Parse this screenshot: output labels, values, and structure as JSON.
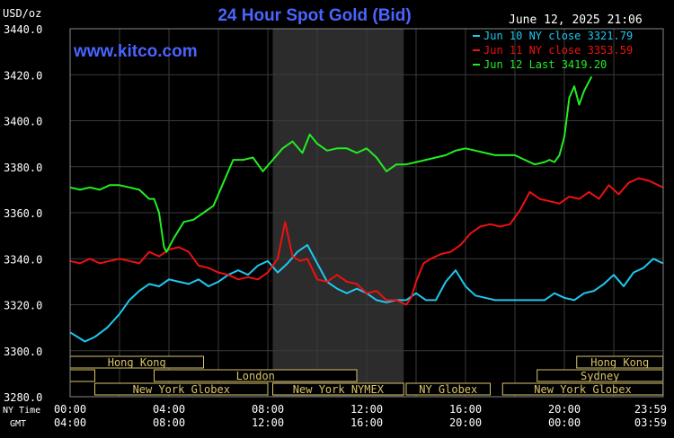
{
  "header": {
    "unit": "USD/oz",
    "title": "24 Hour Spot Gold (Bid)",
    "datetime": "June 12, 2025 21:06",
    "watermark": "www.kitco.com"
  },
  "axes": {
    "ny_label": "NY Time",
    "gmt_label": "GMT",
    "ny_ticks": [
      "00:00",
      "04:00",
      "08:00",
      "12:00",
      "16:00",
      "20:00",
      "23:59"
    ],
    "gmt_ticks": [
      "04:00",
      "08:00",
      "12:00",
      "16:00",
      "20:00",
      "00:00",
      "03:59"
    ]
  },
  "sessions": [
    {
      "label": "Hong Kong",
      "row": 0,
      "start": 0,
      "end": 5.4
    },
    {
      "label": "Hong Kong",
      "row": 0,
      "start": 20.5,
      "end": 23.99
    },
    {
      "label": "",
      "row": 1,
      "start": 0,
      "end": 1
    },
    {
      "label": "London",
      "row": 1,
      "start": 3.4,
      "end": 11.6
    },
    {
      "label": "Sydney",
      "row": 1,
      "start": 18.9,
      "end": 23.99
    },
    {
      "label": "New York Globex",
      "row": 2,
      "start": 1,
      "end": 8
    },
    {
      "label": "New York NYMEX",
      "row": 2,
      "start": 8.2,
      "end": 13.5
    },
    {
      "label": "NY Globex",
      "row": 2,
      "start": 13.6,
      "end": 17
    },
    {
      "label": "New York Globex",
      "row": 2,
      "start": 17.5,
      "end": 23.99
    }
  ],
  "colors": {
    "jun10": "#1ec8f0",
    "jun11": "#ee1111",
    "jun12": "#22ee22",
    "title": "#4a64ff",
    "watermark": "#4a64ff",
    "grid": "#3a3a3a",
    "nymex_shade": "#2c2c2c",
    "session_box": "#d9c36a"
  },
  "chart_data": {
    "type": "line",
    "title": "24 Hour Spot Gold (Bid)",
    "xlabel": "",
    "ylabel": "USD/oz",
    "x_unit": "hours (NY time)",
    "xlim": [
      0,
      24
    ],
    "ylim": [
      3280,
      3440
    ],
    "yticks": [
      3280,
      3300,
      3320,
      3340,
      3360,
      3380,
      3400,
      3420,
      3440
    ],
    "ytick_labels": [
      "3280.0",
      "3300.0",
      "3320.0",
      "3340.0",
      "3360.0",
      "3380.0",
      "3400.0",
      "3420.0",
      "3440.0"
    ],
    "shaded_x_range": [
      8.2,
      13.5
    ],
    "legend_position": "top-right",
    "series": [
      {
        "name": "Jun 10 NY close 3321.79",
        "color": "#1ec8f0",
        "x": [
          0,
          0.3,
          0.6,
          1,
          1.5,
          2,
          2.4,
          2.8,
          3.2,
          3.6,
          4,
          4.4,
          4.8,
          5.2,
          5.6,
          6,
          6.4,
          6.8,
          7.2,
          7.6,
          8,
          8.4,
          8.8,
          9.2,
          9.6,
          10,
          10.4,
          10.8,
          11.2,
          11.6,
          12,
          12.4,
          12.8,
          13.2,
          13.6,
          14,
          14.4,
          14.8,
          15.2,
          15.6,
          16,
          16.4,
          16.8,
          17.2,
          17.6,
          18,
          18.4,
          18.8,
          19.2,
          19.6,
          20,
          20.4,
          20.8,
          21.2,
          21.6,
          22,
          22.4,
          22.8,
          23.2,
          23.6,
          23.99
        ],
        "y": [
          3308,
          3306,
          3304,
          3306,
          3310,
          3316,
          3322,
          3326,
          3329,
          3328,
          3331,
          3330,
          3329,
          3331,
          3328,
          3330,
          3333,
          3335,
          3333,
          3337,
          3339,
          3334,
          3338,
          3343,
          3346,
          3338,
          3330,
          3327,
          3325,
          3327,
          3325,
          3322,
          3321,
          3322,
          3322,
          3325,
          3322,
          3322,
          3330,
          3335,
          3328,
          3324,
          3323,
          3322,
          3322,
          3322,
          3322,
          3322,
          3322,
          3325,
          3323,
          3322,
          3325,
          3326,
          3329,
          3333,
          3328,
          3334,
          3336,
          3340,
          3338
        ]
      },
      {
        "name": "Jun 11 NY close 3353.59",
        "color": "#ee1111",
        "x": [
          0,
          0.4,
          0.8,
          1.2,
          1.6,
          2,
          2.4,
          2.8,
          3.2,
          3.6,
          4,
          4.4,
          4.8,
          5.2,
          5.6,
          6,
          6.4,
          6.8,
          7.2,
          7.6,
          8,
          8.4,
          8.7,
          9,
          9.3,
          9.6,
          10,
          10.4,
          10.8,
          11.2,
          11.6,
          12,
          12.4,
          12.8,
          13.2,
          13.6,
          13.8,
          14,
          14.3,
          14.6,
          15,
          15.4,
          15.8,
          16.2,
          16.6,
          17,
          17.4,
          17.8,
          18.2,
          18.6,
          19,
          19.4,
          19.8,
          20.2,
          20.6,
          21,
          21.4,
          21.8,
          22.2,
          22.6,
          23,
          23.4,
          23.99
        ],
        "y": [
          3339,
          3338,
          3340,
          3338,
          3339,
          3340,
          3339,
          3338,
          3343,
          3341,
          3344,
          3345,
          3343,
          3337,
          3336,
          3334,
          3333,
          3331,
          3332,
          3331,
          3334,
          3340,
          3356,
          3341,
          3339,
          3340,
          3331,
          3330,
          3333,
          3330,
          3329,
          3325,
          3326,
          3322,
          3322,
          3320,
          3323,
          3330,
          3338,
          3340,
          3342,
          3343,
          3346,
          3351,
          3354,
          3355,
          3354,
          3355,
          3361,
          3369,
          3366,
          3365,
          3364,
          3367,
          3366,
          3369,
          3366,
          3372,
          3368,
          3373,
          3375,
          3374,
          3371
        ]
      },
      {
        "name": "Jun 12 Last 3419.20",
        "color": "#22ee22",
        "x": [
          0,
          0.4,
          0.8,
          1.2,
          1.6,
          2,
          2.4,
          2.8,
          3.2,
          3.4,
          3.6,
          3.8,
          3.9,
          4.2,
          4.6,
          5,
          5.4,
          5.8,
          6.2,
          6.6,
          7,
          7.4,
          7.8,
          8.2,
          8.6,
          9,
          9.4,
          9.7,
          10,
          10.4,
          10.8,
          11.2,
          11.6,
          12,
          12.4,
          12.8,
          13.2,
          13.6,
          14,
          14.4,
          14.8,
          15.2,
          15.6,
          16,
          16.4,
          16.8,
          17.2,
          17.6,
          18,
          18.4,
          18.8,
          19.2,
          19.4,
          19.6,
          19.8,
          20,
          20.2,
          20.4,
          20.6,
          20.8,
          21.1
        ],
        "y": [
          3371,
          3370,
          3371,
          3370,
          3372,
          3372,
          3371,
          3370,
          3366,
          3366,
          3360,
          3345,
          3343,
          3349,
          3356,
          3357,
          3360,
          3363,
          3373,
          3383,
          3383,
          3384,
          3378,
          3383,
          3388,
          3391,
          3386,
          3394,
          3390,
          3387,
          3388,
          3388,
          3386,
          3388,
          3384,
          3378,
          3381,
          3381,
          3382,
          3383,
          3384,
          3385,
          3387,
          3388,
          3387,
          3386,
          3385,
          3385,
          3385,
          3383,
          3381,
          3382,
          3383,
          3382,
          3385,
          3393,
          3410,
          3415,
          3407,
          3413,
          3419.2
        ]
      }
    ]
  }
}
